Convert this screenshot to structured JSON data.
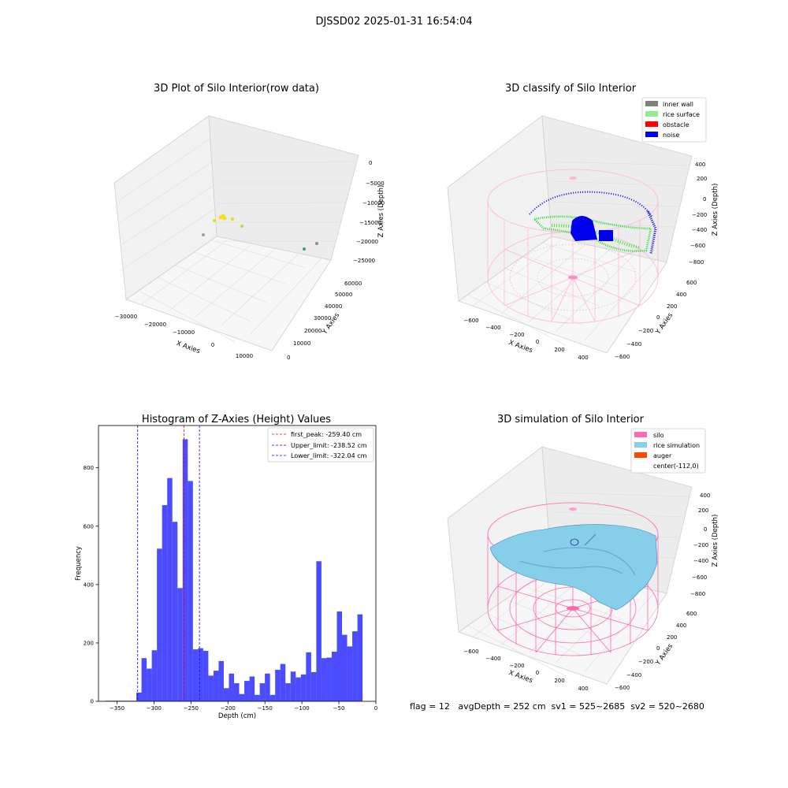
{
  "suptitle": "DJSSD02 2025-01-31 16:54:04",
  "panels": {
    "raw": {
      "title": "3D Plot of Silo Interior(row data)",
      "xlabel": "X Axies",
      "ylabel": "Y Axies",
      "zlabel": "Z Axies (Depth)",
      "xticks": [
        "−30000",
        "−20000",
        "−10000",
        "0",
        "10000"
      ],
      "yticks": [
        "0",
        "10000",
        "20000",
        "30000",
        "40000",
        "50000",
        "60000"
      ],
      "zticks": [
        "0",
        "−5000",
        "−10000",
        "−15000",
        "−20000",
        "−25000"
      ]
    },
    "classify": {
      "title": "3D classify of Silo Interior",
      "xlabel": "X Axies",
      "ylabel": "Y Axies",
      "zlabel": "Z Axies (Depth)",
      "xticks": [
        "−600",
        "−400",
        "−200",
        "0",
        "200",
        "400"
      ],
      "yticks": [
        "−600",
        "−400",
        "−200",
        "0",
        "200",
        "400",
        "600"
      ],
      "zticks": [
        "400",
        "200",
        "0",
        "−200",
        "−400",
        "−600",
        "−800"
      ],
      "legend": [
        {
          "label": "inner wall",
          "color": "#808080"
        },
        {
          "label": "rice surface",
          "color": "#90ee90"
        },
        {
          "label": "obstacle",
          "color": "#ff0000"
        },
        {
          "label": "noise",
          "color": "#0000ff"
        }
      ]
    },
    "simulation": {
      "title": "3D simulation of Silo Interior",
      "xlabel": "X Axies",
      "ylabel": "Y Axies",
      "zlabel": "Z Axies (Depth)",
      "xticks": [
        "−600",
        "−400",
        "−200",
        "0",
        "200",
        "400"
      ],
      "yticks": [
        "−600",
        "−400",
        "−200",
        "0",
        "200",
        "400",
        "600"
      ],
      "zticks": [
        "400",
        "200",
        "0",
        "−200",
        "−400",
        "−600",
        "−800"
      ],
      "legend": [
        {
          "label": "silo",
          "color": "#ff69b4"
        },
        {
          "label": "rice simulation",
          "color": "#87ceeb"
        },
        {
          "label": "auger",
          "color": "#ff4500"
        },
        {
          "label": "center(-112,0)",
          "color": ""
        }
      ]
    }
  },
  "chart_data": {
    "type": "bar",
    "title": "Histogram of Z-Axies (Height) Values",
    "xlabel": "Depth (cm)",
    "ylabel": "Frequency",
    "xlim": [
      -375,
      0
    ],
    "ylim": [
      0,
      945
    ],
    "xticks": [
      -350,
      -300,
      -250,
      -200,
      -150,
      -100,
      -50,
      0
    ],
    "xtick_labels": [
      "−350",
      "−300",
      "−250",
      "−200",
      "−150",
      "−100",
      "−50",
      "0"
    ],
    "yticks": [
      0,
      200,
      400,
      600,
      800
    ],
    "yticks_labels": [
      "0",
      "200",
      "400",
      "600",
      "800"
    ],
    "bar_color": "#0000ff",
    "bin_start": -365.5,
    "bin_width": 6.95,
    "values": [
      2,
      2,
      2,
      2,
      2,
      2,
      30,
      148,
      112,
      175,
      523,
      672,
      765,
      615,
      388,
      898,
      755,
      178,
      182,
      173,
      88,
      105,
      138,
      45,
      95,
      62,
      25,
      70,
      85,
      22,
      62,
      95,
      22,
      108,
      128,
      62,
      102,
      82,
      92,
      168,
      100,
      480,
      148,
      150,
      170,
      308,
      228,
      188,
      240,
      298
    ],
    "vlines": [
      {
        "label": "first_peak: -259.40 cm",
        "x": -259.4,
        "color": "#ff0000"
      },
      {
        "label": "Upper_limit: -238.52 cm",
        "x": -238.52,
        "color": "#0000ff"
      },
      {
        "label": "Lower_limit: -322.04 cm",
        "x": -322.04,
        "color": "#0000ff"
      }
    ]
  },
  "info": "flag = 12   avgDepth = 252 cm  sv1 = 525~2685  sv2 = 520~2680"
}
